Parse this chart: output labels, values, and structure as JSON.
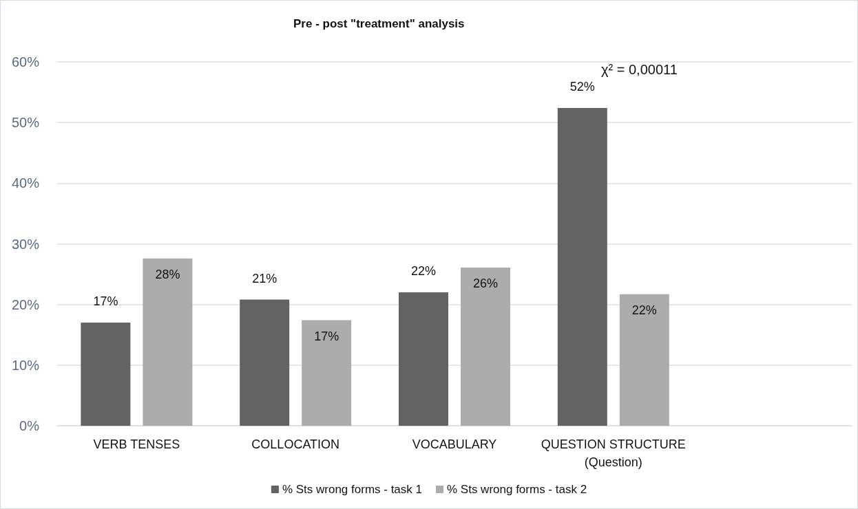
{
  "chart_data": {
    "type": "bar",
    "title": "Pre - post \"treatment\" analysis",
    "categories": [
      "VERB TENSES",
      "COLLOCATION",
      "VOCABULARY",
      "QUESTION STRUCTURE\n(Question)",
      null
    ],
    "series": [
      {
        "name": "% Sts wrong forms - task 1",
        "color": "#636363",
        "values": [
          17.0,
          20.8,
          22.0,
          52.4,
          null
        ],
        "value_labels": [
          "17%",
          "21%",
          "22%",
          "52%",
          null
        ]
      },
      {
        "name": "% Sts wrong forms - task 2",
        "color": "#acacac",
        "values": [
          27.6,
          17.4,
          26.1,
          21.7,
          null
        ],
        "value_labels": [
          "28%",
          "17%",
          "26%",
          "22%",
          null
        ]
      }
    ],
    "ylim": [
      0,
      60
    ],
    "yticks": [
      {
        "value": 0,
        "label": "0%"
      },
      {
        "value": 10,
        "label": "10%"
      },
      {
        "value": 20,
        "label": "20%"
      },
      {
        "value": 30,
        "label": "30%"
      },
      {
        "value": 40,
        "label": "40%"
      },
      {
        "value": 50,
        "label": "50%"
      },
      {
        "value": 60,
        "label": "60%"
      }
    ],
    "annotations": [
      "χ² = 0,00011"
    ],
    "grid": "y",
    "legend": "bottom"
  }
}
